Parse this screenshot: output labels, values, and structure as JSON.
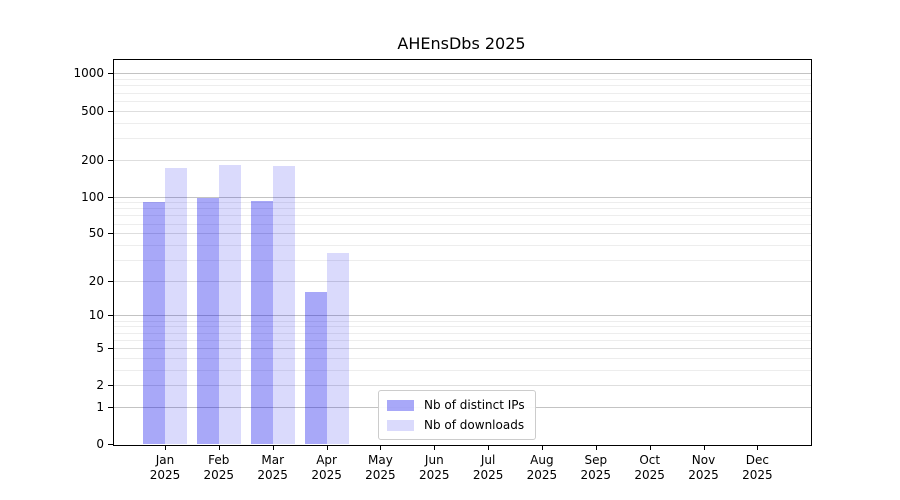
{
  "chart_data": {
    "type": "bar",
    "title": "AHEnsDbs 2025",
    "xlabel": "",
    "ylabel": "",
    "y_scale": "log(1+y)",
    "ylim": [
      0,
      1300
    ],
    "y_ticks": [
      0,
      1,
      2,
      5,
      10,
      20,
      50,
      100,
      200,
      500,
      1000
    ],
    "grid": "horizontal major and minor log gridlines",
    "legend_position": "inside lower center",
    "categories": [
      "Jan 2025",
      "Feb 2025",
      "Mar 2025",
      "Apr 2025",
      "May 2025",
      "Jun 2025",
      "Jul 2025",
      "Aug 2025",
      "Sep 2025",
      "Oct 2025",
      "Nov 2025",
      "Dec 2025"
    ],
    "series": [
      {
        "name": "Nb of distinct IPs",
        "fill": "rgba(2,2,235,0.345)",
        "fill_hex": "#a8a8f7",
        "values": [
          90,
          97,
          92,
          16,
          0,
          0,
          0,
          0,
          0,
          0,
          0,
          0
        ]
      },
      {
        "name": "Nb of downloads",
        "fill": "rgba(2,2,235,0.146)",
        "fill_hex": "#dadaf9",
        "values": [
          170,
          180,
          176,
          34,
          0,
          0,
          0,
          0,
          0,
          0,
          0,
          0
        ]
      }
    ],
    "colors": {
      "major_grid": "#c3c3c3",
      "labeled_minor_grid": "#dedede",
      "minor_grid": "#ededed",
      "axis": "#000000",
      "legend_border": "#cccccc",
      "background": "#ffffff"
    }
  }
}
